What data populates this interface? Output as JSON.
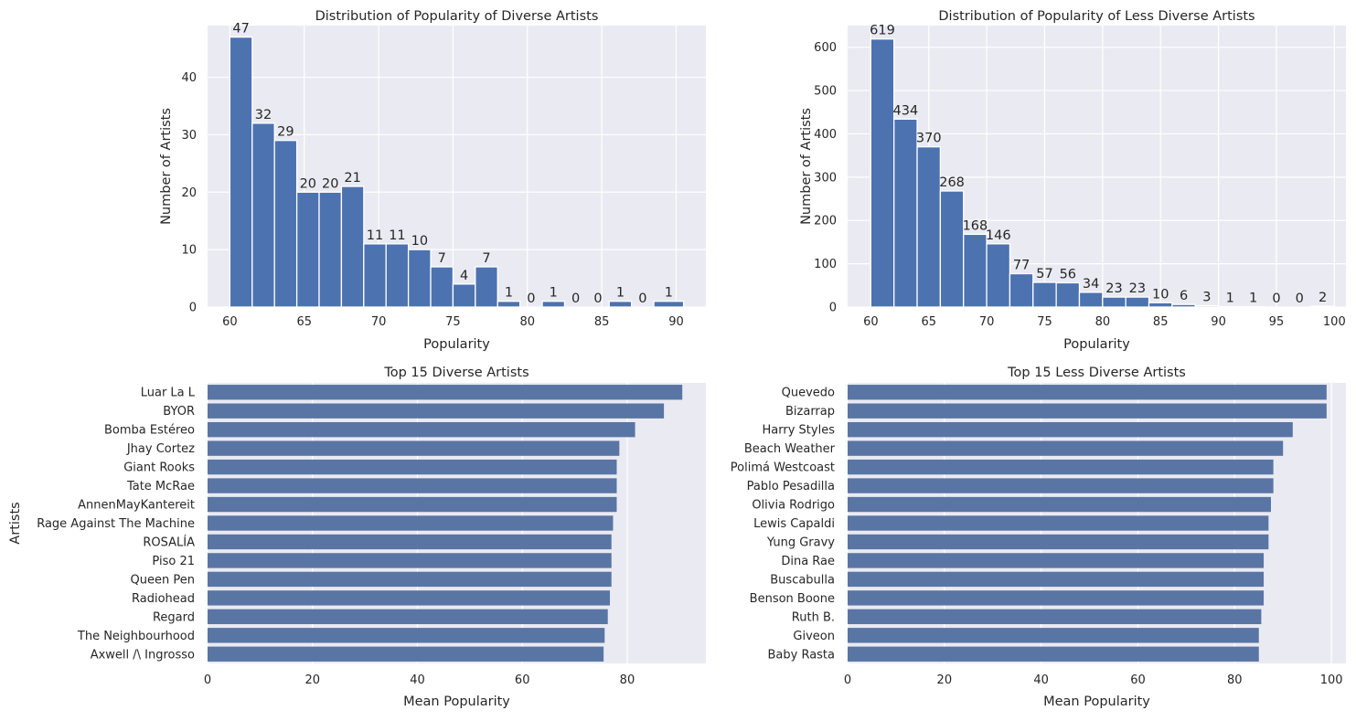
{
  "colors": {
    "plot_bg": "#EAEAF2",
    "grid": "#FFFFFF",
    "hist_bar": "#4C72B0",
    "barh_bar": "#5975A4",
    "text": "#262626"
  },
  "chart_data": [
    {
      "type": "bar",
      "title": "Distribution of Popularity of Diverse Artists",
      "xlabel": "Popularity",
      "ylabel": "Number of Artists",
      "bin_edges": [
        60,
        61.5,
        63,
        64.5,
        66,
        67.5,
        69,
        70.5,
        72,
        73.5,
        75,
        76.5,
        78,
        79.5,
        81,
        82.5,
        84,
        85.5,
        87,
        88.5,
        90.5
      ],
      "values": [
        47,
        32,
        29,
        20,
        20,
        21,
        11,
        11,
        10,
        7,
        4,
        7,
        1,
        0,
        1,
        0,
        0,
        1,
        0,
        1
      ],
      "data_labels": [
        "47",
        "32",
        "29",
        "20",
        "20",
        "21",
        "11",
        "11",
        "10",
        "7",
        "4",
        "7",
        "1",
        "0",
        "1",
        "0",
        "0",
        "1",
        "0",
        "1"
      ],
      "xlim": [
        58.5,
        92
      ],
      "ylim": [
        0,
        49
      ],
      "x_ticks": [
        60,
        65,
        70,
        75,
        80,
        85,
        90
      ],
      "x_tick_labels": [
        "60",
        "65",
        "70",
        "75",
        "80",
        "85",
        "90"
      ],
      "y_ticks": [
        0,
        10,
        20,
        30,
        40
      ],
      "y_tick_labels": [
        "0",
        "10",
        "20",
        "30",
        "40"
      ],
      "grid": true
    },
    {
      "type": "bar",
      "title": "Distribution of Popularity of Less Diverse Artists",
      "xlabel": "Popularity",
      "ylabel": "Number of Artists",
      "bin_edges": [
        60,
        62,
        64,
        66,
        68,
        70,
        72,
        74,
        76,
        78,
        80,
        82,
        84,
        86,
        88,
        90,
        92,
        94,
        96,
        98,
        100
      ],
      "values": [
        619,
        434,
        370,
        268,
        168,
        146,
        77,
        57,
        56,
        34,
        23,
        23,
        10,
        6,
        3,
        1,
        1,
        0,
        0,
        2
      ],
      "data_labels": [
        "619",
        "434",
        "370",
        "268",
        "168",
        "146",
        "77",
        "57",
        "56",
        "34",
        "23",
        "23",
        "10",
        "6",
        "3",
        "1",
        "1",
        "0",
        "0",
        "2"
      ],
      "xlim": [
        58,
        101
      ],
      "ylim": [
        0,
        650
      ],
      "x_ticks": [
        60,
        65,
        70,
        75,
        80,
        85,
        90,
        95,
        100
      ],
      "x_tick_labels": [
        "60",
        "65",
        "70",
        "75",
        "80",
        "85",
        "90",
        "95",
        "100"
      ],
      "y_ticks": [
        0,
        100,
        200,
        300,
        400,
        500,
        600
      ],
      "y_tick_labels": [
        "0",
        "100",
        "200",
        "300",
        "400",
        "500",
        "600"
      ],
      "grid": true
    },
    {
      "type": "bar",
      "orientation": "horizontal",
      "title": "Top 15 Diverse Artists",
      "xlabel": "Mean Popularity",
      "ylabel": "Artists",
      "categories": [
        "Luar La L",
        "BYOR",
        "Bomba Estéreo",
        "Jhay Cortez",
        "Giant Rooks",
        "Tate McRae",
        "AnnenMayKantereit",
        "Rage Against The Machine",
        "ROSALÍA",
        "Piso 21",
        "Queen Pen",
        "Radiohead",
        "Regard",
        "The Neighbourhood",
        "Axwell /\\ Ingrosso"
      ],
      "values": [
        90.5,
        87,
        81.5,
        78.5,
        78,
        78,
        78,
        77.3,
        77,
        77,
        77,
        76.7,
        76.3,
        75.7,
        75.5
      ],
      "xlim": [
        0,
        95
      ],
      "x_ticks": [
        0,
        20,
        40,
        60,
        80
      ],
      "x_tick_labels": [
        "0",
        "20",
        "40",
        "60",
        "80"
      ],
      "grid": true
    },
    {
      "type": "bar",
      "orientation": "horizontal",
      "title": "Top 15 Less Diverse Artists",
      "xlabel": "Mean Popularity",
      "ylabel": "",
      "categories": [
        "Quevedo",
        "Bizarrap",
        "Harry Styles",
        "Beach Weather",
        "Polimá Westcoast",
        "Pablo Pesadilla",
        "Olivia Rodrigo",
        "Lewis Capaldi",
        "Yung Gravy",
        "Dina Rae",
        "Buscabulla",
        "Benson Boone",
        "Ruth B.",
        "Giveon",
        "Baby Rasta"
      ],
      "values": [
        99,
        99,
        92,
        90,
        88,
        88,
        87.5,
        87,
        87,
        86,
        86,
        86,
        85.5,
        85,
        85
      ],
      "xlim": [
        0,
        103
      ],
      "x_ticks": [
        0,
        20,
        40,
        60,
        80,
        100
      ],
      "x_tick_labels": [
        "0",
        "20",
        "40",
        "60",
        "80",
        "100"
      ],
      "grid": true
    }
  ]
}
